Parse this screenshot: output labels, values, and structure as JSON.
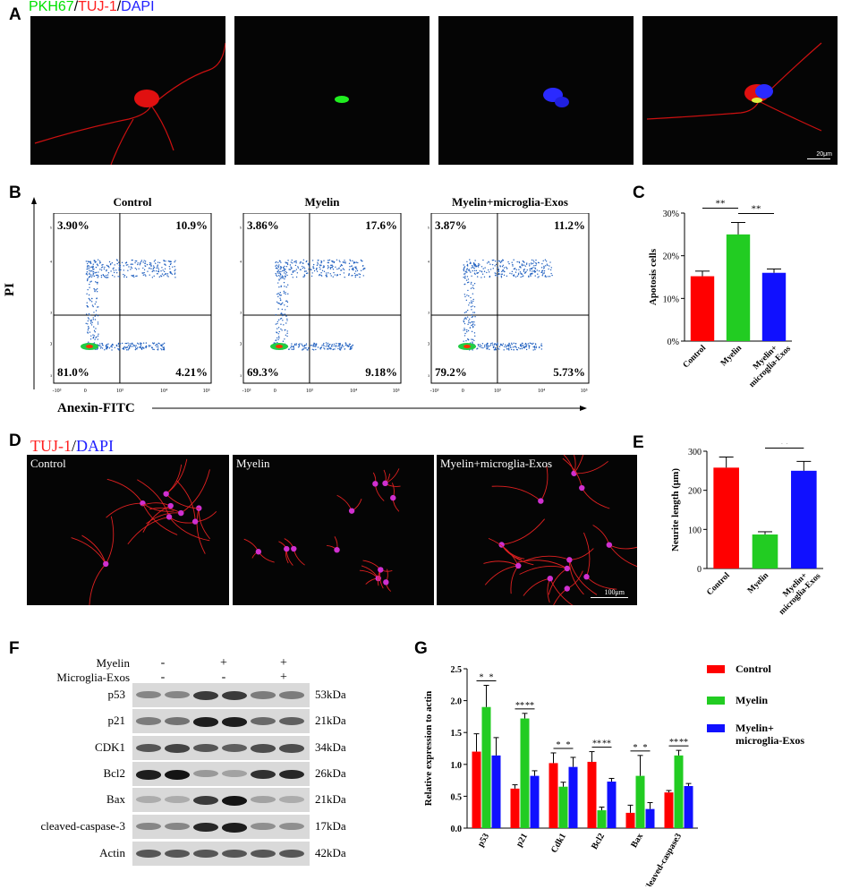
{
  "panels": {
    "A": "A",
    "B": "B",
    "C": "C",
    "D": "D",
    "E": "E",
    "F": "F",
    "G": "G"
  },
  "panel_a": {
    "title_parts": [
      {
        "text": "PKH67",
        "color": "#00e000"
      },
      {
        "text": "/",
        "color": "#000000"
      },
      {
        "text": "TUJ-1",
        "color": "#ff2020"
      },
      {
        "text": "/",
        "color": "#000000"
      },
      {
        "text": "DAPI",
        "color": "#2020ff"
      }
    ],
    "scale_bar": "20μm"
  },
  "panel_b": {
    "groups": [
      {
        "title": "Control",
        "ul": "3.90%",
        "ur": "10.9%",
        "ll": "81.0%",
        "lr": "4.21%"
      },
      {
        "title": "Myelin",
        "ul": "3.86%",
        "ur": "17.6%",
        "ll": "69.3%",
        "lr": "9.18%"
      },
      {
        "title": "Myelin+microglia-Exos",
        "ul": "3.87%",
        "ur": "11.2%",
        "ll": "79.2%",
        "lr": "5.73%"
      }
    ],
    "y_axis_label": "PI",
    "x_axis_label": "Anexin-FITC",
    "x_ticks": [
      "-10³",
      "0",
      "10³",
      "10⁴",
      "10⁵"
    ],
    "y_ticks": [
      "10⁵",
      "10⁴",
      "10³",
      "0",
      "-10³"
    ]
  },
  "panel_d": {
    "title_parts": [
      {
        "text": "TUJ-1",
        "color": "#ff2020"
      },
      {
        "text": "/",
        "color": "#000000"
      },
      {
        "text": "DAPI",
        "color": "#2020ff"
      }
    ],
    "images": [
      "Control",
      "Myelin",
      "Myelin+microglia-Exos"
    ],
    "scale_bar": "100μm"
  },
  "panel_f": {
    "myelin_label": "Myelin",
    "exos_label": "Microglia-Exos",
    "myelin_signs": [
      "-",
      "+",
      "+"
    ],
    "exos_signs": [
      "-",
      "-",
      "+"
    ],
    "rows": [
      {
        "name": "p53",
        "kda": "53kDa"
      },
      {
        "name": "p21",
        "kda": "21kDa"
      },
      {
        "name": "CDK1",
        "kda": "34kDa"
      },
      {
        "name": "Bcl2",
        "kda": "26kDa"
      },
      {
        "name": "Bax",
        "kda": "21kDa"
      },
      {
        "name": "cleaved-caspase-3",
        "kda": "17kDa"
      },
      {
        "name": "Actin",
        "kda": "42kDa"
      }
    ]
  },
  "colors": {
    "control": "#ff0000",
    "myelin": "#22cc22",
    "exos": "#1010ff"
  },
  "chart_data": [
    {
      "id": "C",
      "type": "bar",
      "categories": [
        "Control",
        "Myelin",
        "Myelin+ microglia-Exos"
      ],
      "values": [
        15.2,
        25.0,
        16.0
      ],
      "errors": [
        1.2,
        2.8,
        0.9
      ],
      "ylabel": "Apotosis cells",
      "ylim": [
        0,
        30
      ],
      "yticks": [
        "0%",
        "10%",
        "20%",
        "30%"
      ],
      "significance": [
        {
          "from": 0,
          "to": 1,
          "text": "**"
        },
        {
          "from": 1,
          "to": 2,
          "text": "**"
        }
      ]
    },
    {
      "id": "E",
      "type": "bar",
      "categories": [
        "Control",
        "Myelin",
        "Myelin+ microglia-Exos"
      ],
      "values": [
        258,
        87,
        250
      ],
      "errors": [
        27,
        7,
        24
      ],
      "ylabel": "Neurite length (μm)",
      "ylim": [
        0,
        300
      ],
      "yticks": [
        "0",
        "100",
        "200",
        "300"
      ],
      "significance": [
        {
          "from": 0,
          "to": 1,
          "text": "**"
        },
        {
          "from": 1,
          "to": 2,
          "text": "**"
        }
      ]
    },
    {
      "id": "G",
      "type": "bar",
      "categories": [
        "p53",
        "p21",
        "Cdk1",
        "Bcl2",
        "Bax",
        "Cleaved-caspase3"
      ],
      "series": [
        {
          "name": "Control",
          "values": [
            1.2,
            0.62,
            1.02,
            1.04,
            0.24,
            0.56
          ],
          "errors": [
            0.28,
            0.06,
            0.16,
            0.16,
            0.12,
            0.03
          ]
        },
        {
          "name": "Myelin",
          "values": [
            1.9,
            1.72,
            0.65,
            0.28,
            0.82,
            1.14
          ],
          "errors": [
            0.34,
            0.08,
            0.07,
            0.05,
            0.32,
            0.08
          ]
        },
        {
          "name": "Myelin+ microglia-Exos",
          "values": [
            1.14,
            0.82,
            0.96,
            0.73,
            0.3,
            0.66
          ],
          "errors": [
            0.28,
            0.08,
            0.15,
            0.05,
            0.1,
            0.04
          ]
        }
      ],
      "ylabel": "Relative expression to actin",
      "ylim": [
        0,
        2.5
      ],
      "yticks": [
        "0.0",
        "0.5",
        "1.0",
        "1.5",
        "2.0",
        "2.5"
      ],
      "significance_pairs": [
        [
          "*",
          "*"
        ],
        [
          "**",
          "**"
        ],
        [
          "*",
          "*"
        ],
        [
          "**",
          "**"
        ],
        [
          "*",
          "*"
        ],
        [
          "**",
          "**"
        ]
      ],
      "legend": "right"
    }
  ]
}
